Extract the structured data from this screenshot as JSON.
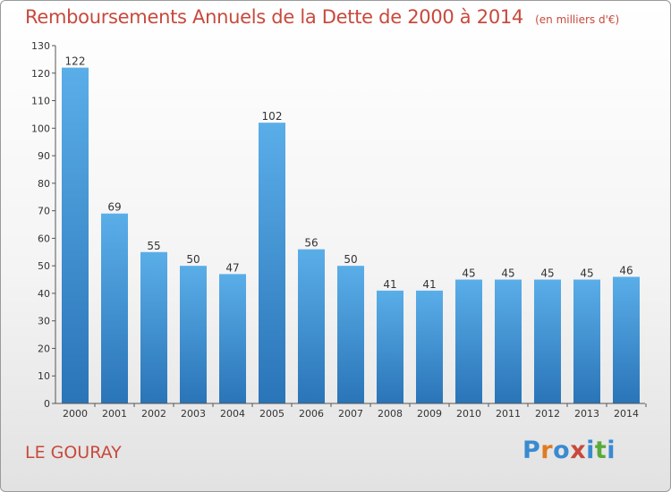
{
  "chart_data": {
    "type": "bar",
    "title": "Remboursements Annuels de la Dette de 2000 à 2014",
    "subtitle": "(en milliers d'€)",
    "categories": [
      "2000",
      "2001",
      "2002",
      "2003",
      "2004",
      "2005",
      "2006",
      "2007",
      "2008",
      "2009",
      "2010",
      "2011",
      "2012",
      "2013",
      "2014"
    ],
    "values": [
      122,
      69,
      55,
      50,
      47,
      102,
      56,
      50,
      41,
      41,
      45,
      45,
      45,
      45,
      46
    ],
    "data_labels": [
      "122",
      "69",
      "55",
      "50",
      "47",
      "102",
      "56",
      "50",
      "41",
      "41",
      "45",
      "45",
      "45",
      "45",
      "46"
    ],
    "y_ticks": [
      "0",
      "10",
      "20",
      "30",
      "40",
      "50",
      "60",
      "70",
      "80",
      "90",
      "100",
      "110",
      "120",
      "130"
    ],
    "ylim": [
      0,
      130
    ],
    "grid": false,
    "bar_color_top": "#5aaee8",
    "bar_color_bottom": "#2a74b8"
  },
  "location": "LE GOURAY",
  "logo": {
    "letters": [
      "P",
      "r",
      "o",
      "x",
      "i",
      "t",
      "i"
    ],
    "colors": [
      "#3a8ad0",
      "#e07b20",
      "#3a8ad0",
      "#c8493c",
      "#3a8ad0",
      "#5aaa3a",
      "#3a8ad0"
    ]
  }
}
